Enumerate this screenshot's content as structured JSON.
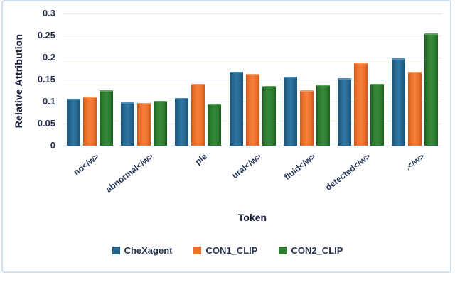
{
  "window": {
    "background": "#ffffff",
    "frame_color": "#cfdff1",
    "grid_color": "#d9e5f3",
    "axis_text_color": "#202c4a",
    "title_text_color": "#15203a"
  },
  "chart_data": {
    "type": "bar",
    "title": "",
    "xlabel": "Token",
    "ylabel": "Relative Attribution",
    "ylim": [
      0,
      0.3
    ],
    "ytick_labels": [
      "0",
      "0.05",
      "0.1",
      "0.15",
      "0.2",
      "0.25",
      "0.3"
    ],
    "grid": "horizontal",
    "legend_position": "bottom",
    "categories": [
      "no</w>",
      "abnormal</w>",
      "ple",
      "ural</w>",
      "fluid</w>",
      "detected</w>",
      ".</w>"
    ],
    "series": [
      {
        "name": "CheXagent",
        "color": "#25648C",
        "color_edge": "#1A4F71",
        "color_light": "#2E78A3",
        "color_top": "#4E8FB4",
        "values": [
          0.106,
          0.099,
          0.108,
          0.168,
          0.157,
          0.153,
          0.199
        ]
      },
      {
        "name": "CON1_CLIP",
        "color": "#ED6F2C",
        "color_edge": "#C85A18",
        "color_light": "#F5803D",
        "color_top": "#F79A5E",
        "values": [
          0.111,
          0.097,
          0.141,
          0.163,
          0.126,
          0.188,
          0.167
        ]
      },
      {
        "name": "CON2_CLIP",
        "color": "#2C7B2E",
        "color_edge": "#1C5E1E",
        "color_light": "#37883A",
        "color_top": "#5AA55C",
        "values": [
          0.126,
          0.101,
          0.095,
          0.136,
          0.138,
          0.141,
          0.255
        ]
      }
    ]
  }
}
